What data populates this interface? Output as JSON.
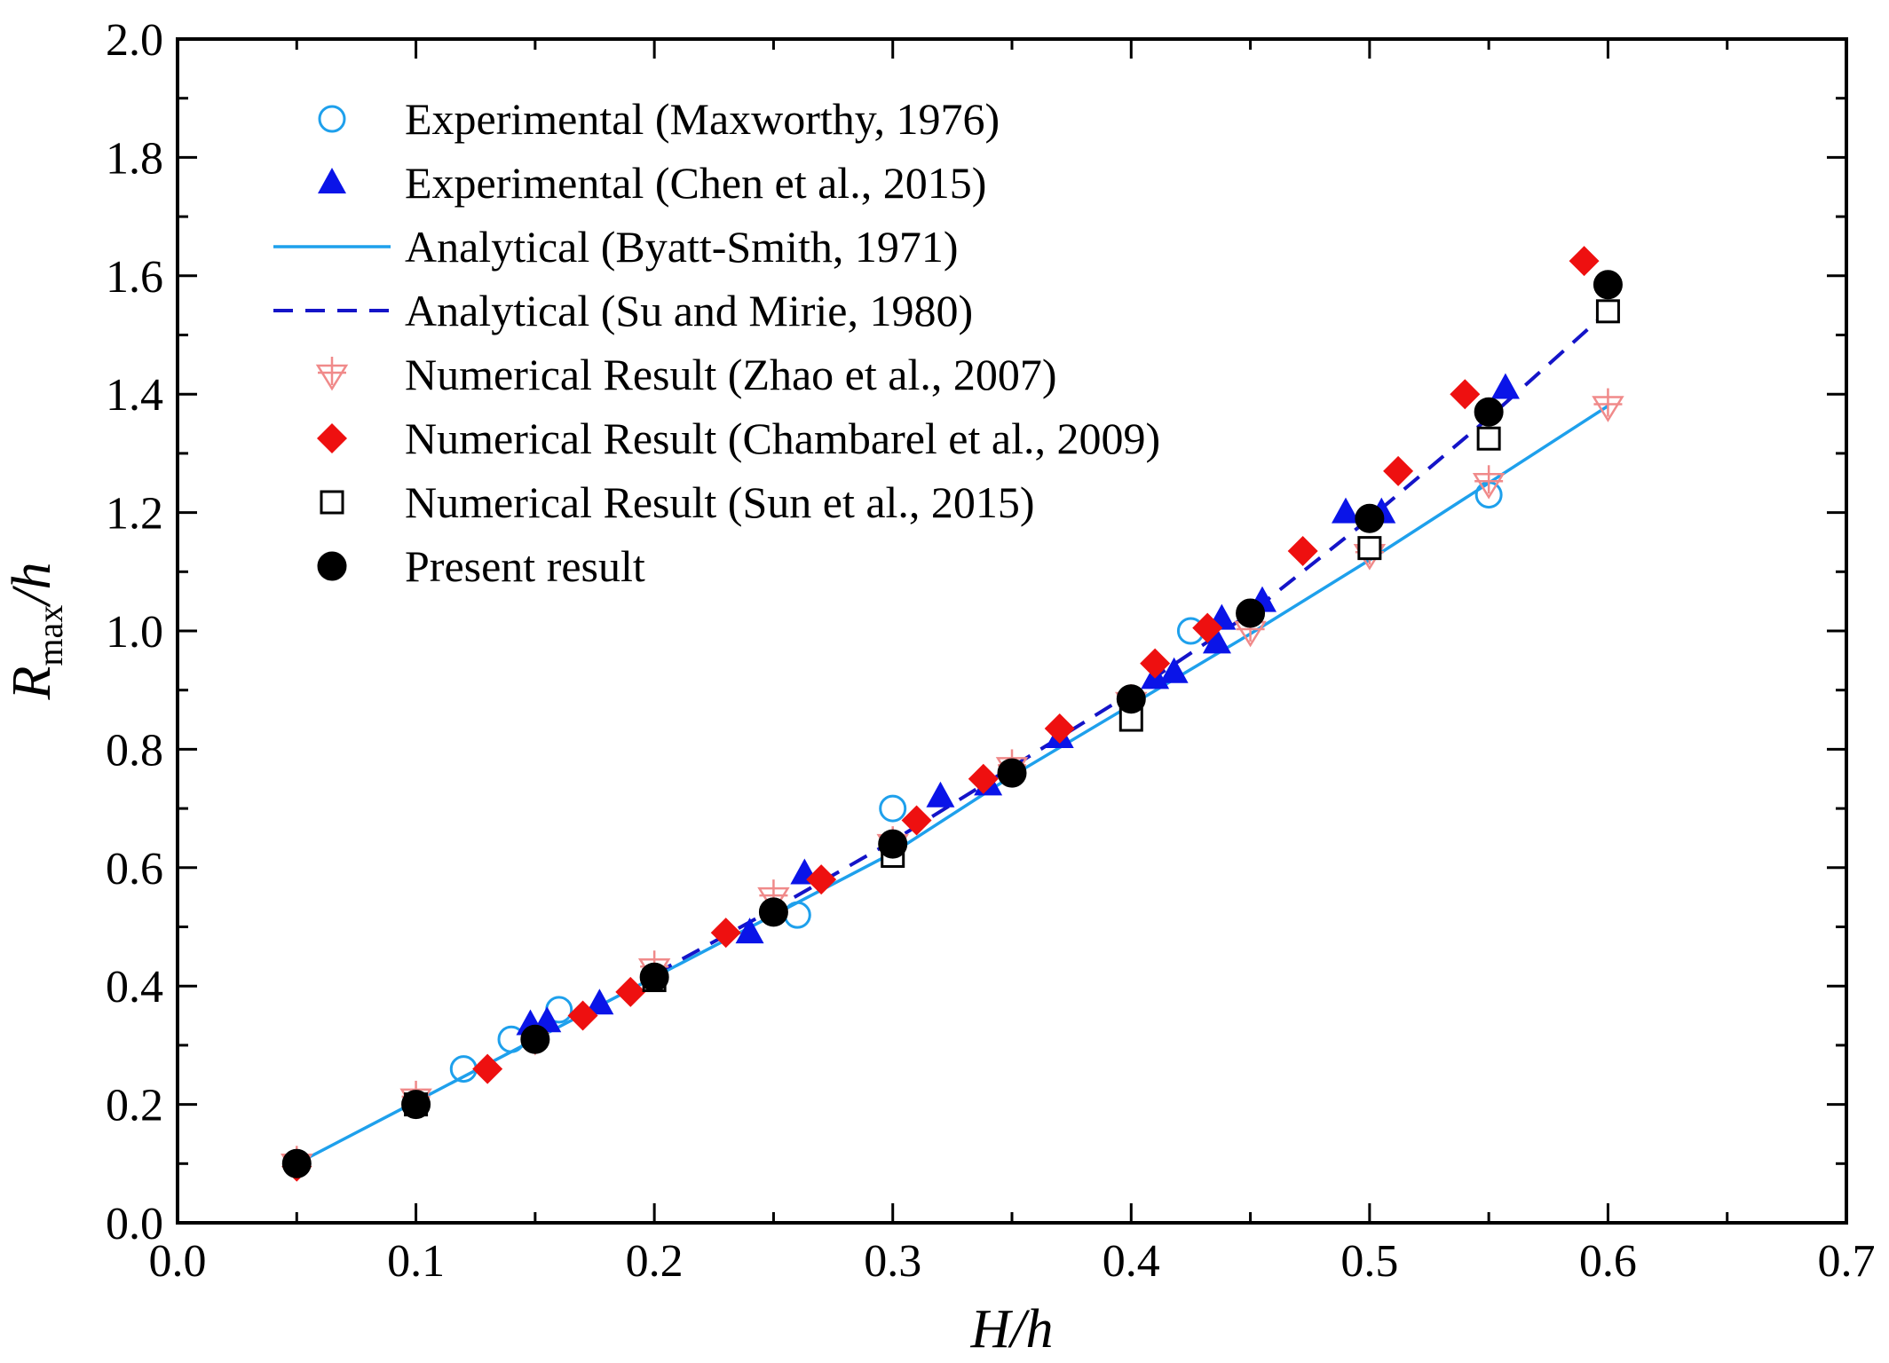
{
  "chart_data": {
    "type": "scatter",
    "title": "",
    "xlabel": "H/h",
    "ylabel": "R_max/h",
    "xlim": [
      0.0,
      0.7
    ],
    "ylim": [
      0.0,
      2.0
    ],
    "xticks": [
      0.0,
      0.1,
      0.2,
      0.3,
      0.4,
      0.5,
      0.6,
      0.7
    ],
    "yticks": [
      0.0,
      0.2,
      0.4,
      0.6,
      0.8,
      1.0,
      1.2,
      1.4,
      1.6,
      1.8,
      2.0
    ],
    "xtick_labels": [
      "0.0",
      "0.1",
      "0.2",
      "0.3",
      "0.4",
      "0.5",
      "0.6",
      "0.7"
    ],
    "ytick_labels": [
      "0.0",
      "0.2",
      "0.4",
      "0.6",
      "0.8",
      "1.0",
      "1.2",
      "1.4",
      "1.6",
      "1.8",
      "2.0"
    ],
    "legend_position": "top-left",
    "grid": false,
    "colors": {
      "maxworthy": "#1ea0ec",
      "chen": "#0a14e8",
      "byatt": "#1ea0ec",
      "su": "#1414c8",
      "zhao": "#f08a8a",
      "chambarel": "#ee1010",
      "sun": "#000000",
      "present": "#000000"
    },
    "series": [
      {
        "name": "Experimental (Maxworthy, 1976)",
        "key": "maxworthy",
        "marker": "open-circle",
        "x": [
          0.12,
          0.14,
          0.16,
          0.26,
          0.3,
          0.425,
          0.55
        ],
        "y": [
          0.26,
          0.31,
          0.36,
          0.52,
          0.7,
          1.0,
          1.23
        ]
      },
      {
        "name": "Experimental (Chen et al., 2015)",
        "key": "chen",
        "marker": "filled-triangle",
        "x": [
          0.148,
          0.155,
          0.177,
          0.24,
          0.263,
          0.32,
          0.34,
          0.37,
          0.41,
          0.418,
          0.436,
          0.438,
          0.455,
          0.49,
          0.505,
          0.557
        ],
        "y": [
          0.335,
          0.34,
          0.37,
          0.49,
          0.59,
          0.72,
          0.74,
          0.82,
          0.92,
          0.93,
          0.98,
          1.02,
          1.05,
          1.2,
          1.2,
          1.41
        ]
      },
      {
        "name": "Analytical (Byatt-Smith, 1971)",
        "key": "byatt",
        "marker": "solid-line",
        "x": [
          0.05,
          0.1,
          0.15,
          0.2,
          0.25,
          0.3,
          0.35,
          0.4,
          0.45,
          0.5,
          0.55,
          0.6
        ],
        "y": [
          0.1,
          0.205,
          0.31,
          0.415,
          0.52,
          0.625,
          0.755,
          0.875,
          0.995,
          1.12,
          1.25,
          1.38
        ]
      },
      {
        "name": "Analytical (Su and Mirie, 1980)",
        "key": "su",
        "marker": "dashed-line",
        "x": [
          0.2,
          0.25,
          0.3,
          0.35,
          0.4,
          0.45,
          0.5,
          0.55,
          0.6
        ],
        "y": [
          0.42,
          0.53,
          0.645,
          0.77,
          0.895,
          1.03,
          1.19,
          1.36,
          1.54
        ]
      },
      {
        "name": "Numerical Result (Zhao et al., 2007)",
        "key": "zhao",
        "marker": "open-triangle-down-plus",
        "x": [
          0.05,
          0.1,
          0.15,
          0.2,
          0.25,
          0.3,
          0.35,
          0.4,
          0.45,
          0.5,
          0.55,
          0.6
        ],
        "y": [
          0.1,
          0.21,
          0.31,
          0.43,
          0.55,
          0.64,
          0.77,
          0.88,
          1.0,
          1.13,
          1.25,
          1.38
        ]
      },
      {
        "name": "Numerical Result (Chambarel et al., 2009)",
        "key": "chambarel",
        "marker": "filled-diamond",
        "x": [
          0.05,
          0.13,
          0.17,
          0.19,
          0.23,
          0.27,
          0.31,
          0.338,
          0.37,
          0.41,
          0.432,
          0.472,
          0.512,
          0.54,
          0.59
        ],
        "y": [
          0.095,
          0.26,
          0.35,
          0.39,
          0.49,
          0.58,
          0.68,
          0.75,
          0.835,
          0.945,
          1.005,
          1.135,
          1.27,
          1.4,
          1.625
        ]
      },
      {
        "name": "Numerical Result (Sun et al., 2015)",
        "key": "sun",
        "marker": "open-square",
        "x": [
          0.1,
          0.2,
          0.3,
          0.4,
          0.5,
          0.55,
          0.6
        ],
        "y": [
          0.2,
          0.41,
          0.62,
          0.85,
          1.14,
          1.325,
          1.54
        ]
      },
      {
        "name": "Present result",
        "key": "present",
        "marker": "filled-circle",
        "x": [
          0.05,
          0.1,
          0.15,
          0.2,
          0.25,
          0.3,
          0.35,
          0.4,
          0.45,
          0.5,
          0.55,
          0.6
        ],
        "y": [
          0.1,
          0.2,
          0.31,
          0.415,
          0.525,
          0.64,
          0.76,
          0.885,
          1.03,
          1.19,
          1.37,
          1.585
        ]
      }
    ]
  }
}
